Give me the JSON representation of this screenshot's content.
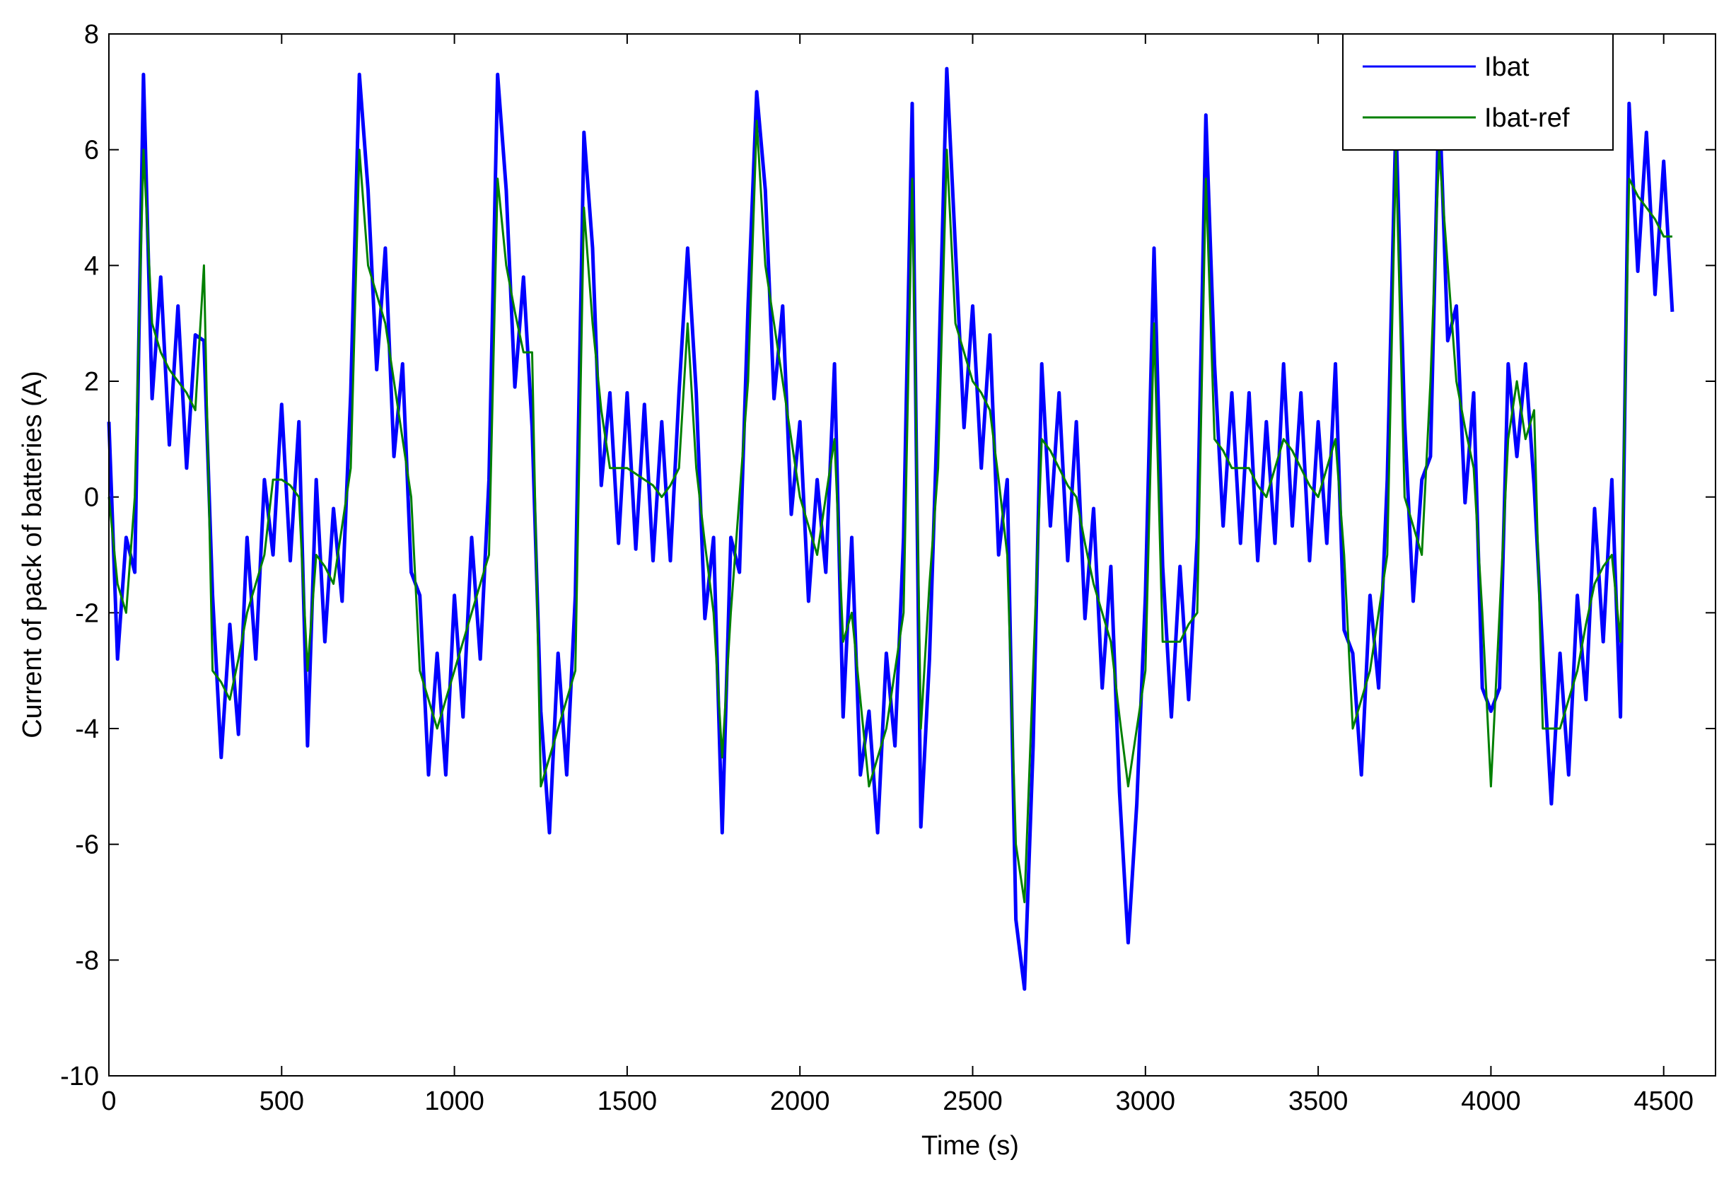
{
  "chart_data": {
    "type": "line",
    "x_label": "Time (s)",
    "y_label": "Current of pack of batteries (A)",
    "xlim": [
      0,
      4650
    ],
    "ylim": [
      -10,
      8
    ],
    "xticks": [
      0,
      500,
      1000,
      1500,
      2000,
      2500,
      3000,
      3500,
      4000,
      4500
    ],
    "yticks": [
      -10,
      -8,
      -6,
      -4,
      -2,
      0,
      2,
      4,
      6,
      8
    ],
    "grid": false,
    "legend_position": "northeast",
    "x": [
      0,
      25,
      50,
      75,
      100,
      125,
      150,
      175,
      200,
      225,
      250,
      275,
      300,
      325,
      350,
      375,
      400,
      425,
      450,
      475,
      500,
      525,
      550,
      575,
      600,
      625,
      650,
      675,
      700,
      725,
      750,
      775,
      800,
      825,
      850,
      875,
      900,
      925,
      950,
      975,
      1000,
      1025,
      1050,
      1075,
      1100,
      1125,
      1150,
      1175,
      1200,
      1225,
      1250,
      1275,
      1300,
      1325,
      1350,
      1375,
      1400,
      1425,
      1450,
      1475,
      1500,
      1525,
      1550,
      1575,
      1600,
      1625,
      1650,
      1675,
      1700,
      1725,
      1750,
      1775,
      1800,
      1825,
      1850,
      1875,
      1900,
      1925,
      1950,
      1975,
      2000,
      2025,
      2050,
      2075,
      2100,
      2125,
      2150,
      2175,
      2200,
      2225,
      2250,
      2275,
      2300,
      2325,
      2350,
      2375,
      2400,
      2425,
      2450,
      2475,
      2500,
      2525,
      2550,
      2575,
      2600,
      2625,
      2650,
      2675,
      2700,
      2725,
      2750,
      2775,
      2800,
      2825,
      2850,
      2875,
      2900,
      2925,
      2950,
      2975,
      3000,
      3025,
      3050,
      3075,
      3100,
      3125,
      3150,
      3175,
      3200,
      3225,
      3250,
      3275,
      3300,
      3325,
      3350,
      3375,
      3400,
      3425,
      3450,
      3475,
      3500,
      3525,
      3550,
      3575,
      3600,
      3625,
      3650,
      3675,
      3700,
      3725,
      3750,
      3775,
      3800,
      3825,
      3850,
      3875,
      3900,
      3925,
      3950,
      3975,
      4000,
      4025,
      4050,
      4075,
      4100,
      4125,
      4150,
      4175,
      4200,
      4225,
      4250,
      4275,
      4300,
      4325,
      4350,
      4375,
      4400,
      4425,
      4450,
      4475,
      4500,
      4525
    ],
    "series": [
      {
        "name": "Ibat",
        "color": "#0000ff",
        "values": [
          1.3,
          -2.8,
          -0.7,
          -1.3,
          7.3,
          1.7,
          3.8,
          0.9,
          3.3,
          0.5,
          2.8,
          2.7,
          -1.7,
          -4.5,
          -2.2,
          -4.1,
          -0.7,
          -2.8,
          0.3,
          -1.0,
          1.6,
          -1.1,
          1.3,
          -4.3,
          0.3,
          -2.5,
          -0.2,
          -1.8,
          1.8,
          7.3,
          5.3,
          2.2,
          4.3,
          0.7,
          2.3,
          -1.3,
          -1.7,
          -4.8,
          -2.7,
          -4.8,
          -1.7,
          -3.8,
          -0.7,
          -2.8,
          0.3,
          7.3,
          5.3,
          1.9,
          3.8,
          1.2,
          -3.7,
          -5.8,
          -2.7,
          -4.8,
          -1.7,
          6.3,
          4.3,
          0.2,
          1.8,
          -0.8,
          1.8,
          -0.9,
          1.6,
          -1.1,
          1.3,
          -1.1,
          1.8,
          4.3,
          1.8,
          -2.1,
          -0.7,
          -5.8,
          -0.7,
          -1.3,
          3.3,
          7.0,
          5.3,
          1.7,
          3.3,
          -0.3,
          1.3,
          -1.8,
          0.3,
          -1.3,
          2.3,
          -3.8,
          -0.7,
          -4.8,
          -3.7,
          -5.8,
          -2.7,
          -4.3,
          -0.7,
          6.8,
          -5.7,
          -2.8,
          1.8,
          7.4,
          4.3,
          1.2,
          3.3,
          0.5,
          2.8,
          -1.0,
          0.3,
          -7.3,
          -8.5,
          -4.3,
          2.3,
          -0.5,
          1.8,
          -1.1,
          1.3,
          -2.1,
          -0.2,
          -3.3,
          -1.2,
          -5.1,
          -7.7,
          -5.3,
          -1.7,
          4.3,
          -1.2,
          -3.8,
          -1.2,
          -3.5,
          -0.7,
          6.6,
          2.3,
          -0.5,
          1.8,
          -0.8,
          1.8,
          -1.1,
          1.3,
          -0.8,
          2.3,
          -0.5,
          1.8,
          -1.1,
          1.3,
          -0.8,
          2.3,
          -2.3,
          -2.7,
          -4.8,
          -1.7,
          -3.3,
          0.3,
          6.5,
          1.3,
          -1.8,
          0.3,
          0.7,
          7.0,
          2.7,
          3.3,
          -0.1,
          1.8,
          -3.3,
          -3.7,
          -3.3,
          2.3,
          0.7,
          2.3,
          0.2,
          -2.7,
          -5.3,
          -2.7,
          -4.8,
          -1.7,
          -3.5,
          -0.2,
          -2.5,
          0.3,
          -3.8,
          6.8,
          3.9,
          6.3,
          3.5,
          5.8,
          3.2
        ]
      },
      {
        "name": "Ibat-ref",
        "color": "#008000",
        "values": [
          0,
          -1.5,
          -2,
          0,
          6,
          3,
          2.5,
          2.2,
          2,
          1.8,
          1.5,
          4,
          -3,
          -3.2,
          -3.5,
          -2.8,
          -2,
          -1.5,
          -1,
          0.3,
          0.3,
          0.2,
          0,
          -3,
          -1,
          -1.2,
          -1.5,
          -0.5,
          0.5,
          6,
          4,
          3.5,
          3,
          2,
          1,
          0,
          -3,
          -3.5,
          -4,
          -3.5,
          -3,
          -2.5,
          -2,
          -1.5,
          -1,
          5.5,
          4,
          3.2,
          2.5,
          2.5,
          -5,
          -4.5,
          -4,
          -3.5,
          -3,
          5,
          3,
          1.5,
          0.5,
          0.5,
          0.5,
          0.4,
          0.3,
          0.2,
          0,
          0.2,
          0.5,
          3,
          0.5,
          -0.8,
          -2,
          -4.5,
          -2,
          0,
          2,
          6.5,
          4,
          3,
          2,
          1,
          0,
          -0.5,
          -1,
          0,
          1,
          -2.5,
          -2,
          -3.5,
          -5,
          -4.5,
          -4,
          -3,
          -2,
          5.5,
          -4,
          -1.5,
          0.5,
          6,
          3,
          2.5,
          2,
          1.8,
          1.5,
          0.3,
          -1,
          -6,
          -7,
          -3,
          1,
          0.8,
          0.5,
          0.2,
          0,
          -0.8,
          -1.5,
          -2,
          -2.5,
          -3.8,
          -5,
          -4,
          -3,
          3,
          -2.5,
          -2.5,
          -2.5,
          -2.2,
          -2,
          5.5,
          1,
          0.8,
          0.5,
          0.5,
          0.5,
          0.2,
          0,
          0.5,
          1,
          0.8,
          0.5,
          0.2,
          0,
          0.5,
          1,
          -1,
          -4,
          -3.5,
          -3,
          -2,
          -1,
          6,
          0,
          -0.5,
          -1,
          2,
          6,
          4,
          2,
          1.2,
          0.5,
          -2,
          -5,
          -2,
          1,
          2,
          1,
          1.5,
          -4,
          -4,
          -4,
          -3.5,
          -3,
          -2.2,
          -1.5,
          -1.2,
          -1,
          -2.5,
          5.5,
          5.2,
          5,
          4.8,
          4.5,
          4.5
        ]
      }
    ]
  }
}
